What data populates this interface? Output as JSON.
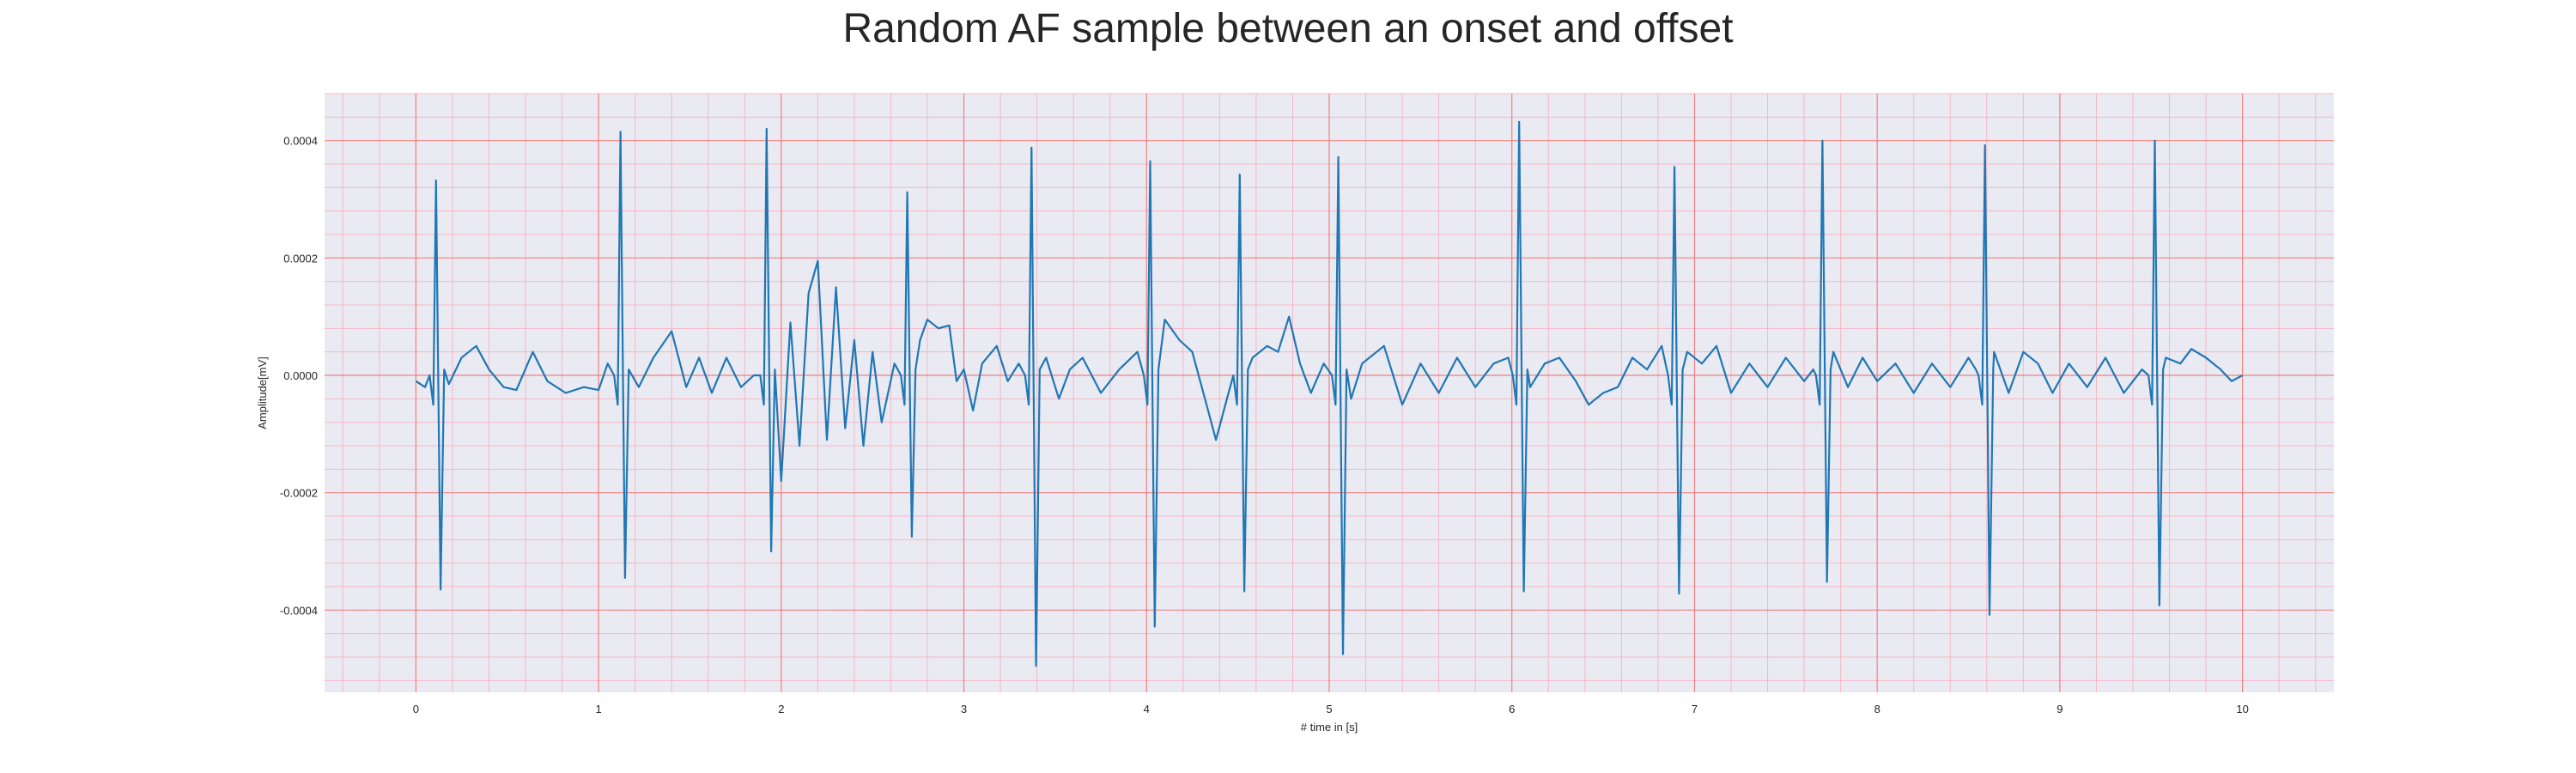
{
  "chart_data": {
    "type": "line",
    "title": "Random AF sample between an onset and offset",
    "xlabel": "# time in [s]",
    "ylabel": "Amplitude[mV]",
    "xlim": [
      -0.5,
      10.5
    ],
    "ylim": [
      -0.00054,
      0.00048
    ],
    "x_ticks": [
      "0",
      "1",
      "2",
      "3",
      "4",
      "5",
      "6",
      "7",
      "8",
      "9",
      "10"
    ],
    "y_ticks": [
      "0.0004",
      "0.0002",
      "0.0000",
      "-0.0002",
      "-0.0004"
    ],
    "grid": true,
    "minor_grid": true,
    "colors": {
      "background": "#eaeaf2",
      "major_grid": "#f08080",
      "minor_grid": "#f5b8c4",
      "line": "#1f77b4"
    },
    "series": [
      {
        "r_peaks": [
          {
            "t": 0.11,
            "peak": 0.000332,
            "trough": -0.000365
          },
          {
            "t": 1.12,
            "peak": 0.000415,
            "trough": -0.000345
          },
          {
            "t": 1.92,
            "peak": 0.00042,
            "trough": -0.0003
          },
          {
            "t": 2.69,
            "peak": 0.000312,
            "trough": -0.000275
          },
          {
            "t": 3.37,
            "peak": 0.000388,
            "trough": -0.000495
          },
          {
            "t": 4.02,
            "peak": 0.000365,
            "trough": -0.000428
          },
          {
            "t": 4.51,
            "peak": 0.000342,
            "trough": -0.000368
          },
          {
            "t": 5.05,
            "peak": 0.000372,
            "trough": -0.000475
          },
          {
            "t": 6.04,
            "peak": 0.000432,
            "trough": -0.000368
          },
          {
            "t": 6.89,
            "peak": 0.000355,
            "trough": -0.000372
          },
          {
            "t": 7.7,
            "peak": 0.0004,
            "trough": -0.000352
          },
          {
            "t": 8.59,
            "peak": 0.000392,
            "trough": -0.000408
          },
          {
            "t": 9.52,
            "peak": 0.0004,
            "trough": -0.000392
          }
        ],
        "baseline_points": [
          [
            0.0,
            -1e-05
          ],
          [
            0.05,
            -2e-05
          ],
          [
            0.18,
            -1.5e-05
          ],
          [
            0.25,
            3e-05
          ],
          [
            0.33,
            5e-05
          ],
          [
            0.4,
            1e-05
          ],
          [
            0.48,
            -2e-05
          ],
          [
            0.55,
            -2.5e-05
          ],
          [
            0.64,
            4e-05
          ],
          [
            0.72,
            -1e-05
          ],
          [
            0.82,
            -3e-05
          ],
          [
            0.92,
            -2e-05
          ],
          [
            1.0,
            -2.5e-05
          ],
          [
            1.05,
            2e-05
          ],
          [
            1.22,
            -2e-05
          ],
          [
            1.3,
            3e-05
          ],
          [
            1.4,
            7.5e-05
          ],
          [
            1.48,
            -2e-05
          ],
          [
            1.55,
            3e-05
          ],
          [
            1.62,
            -3e-05
          ],
          [
            1.7,
            3e-05
          ],
          [
            1.78,
            -2e-05
          ],
          [
            1.85,
            0.0
          ],
          [
            2.0,
            -0.00018
          ],
          [
            2.05,
            9e-05
          ],
          [
            2.1,
            -0.00012
          ],
          [
            2.15,
            0.00014
          ],
          [
            2.2,
            0.000195
          ],
          [
            2.25,
            -0.00011
          ],
          [
            2.3,
            0.00015
          ],
          [
            2.35,
            -9e-05
          ],
          [
            2.4,
            6e-05
          ],
          [
            2.45,
            -0.00012
          ],
          [
            2.5,
            4e-05
          ],
          [
            2.55,
            -8e-05
          ],
          [
            2.62,
            2e-05
          ],
          [
            2.76,
            6e-05
          ],
          [
            2.8,
            9.5e-05
          ],
          [
            2.86,
            8e-05
          ],
          [
            2.92,
            8.5e-05
          ],
          [
            2.96,
            -1e-05
          ],
          [
            3.0,
            1e-05
          ],
          [
            3.05,
            -6e-05
          ],
          [
            3.1,
            2e-05
          ],
          [
            3.18,
            5e-05
          ],
          [
            3.24,
            -1e-05
          ],
          [
            3.3,
            2e-05
          ],
          [
            3.45,
            3e-05
          ],
          [
            3.52,
            -4e-05
          ],
          [
            3.58,
            1e-05
          ],
          [
            3.65,
            3e-05
          ],
          [
            3.75,
            -3e-05
          ],
          [
            3.85,
            1e-05
          ],
          [
            3.95,
            4e-05
          ],
          [
            4.1,
            9.5e-05
          ],
          [
            4.18,
            6e-05
          ],
          [
            4.25,
            4e-05
          ],
          [
            4.32,
            -4e-05
          ],
          [
            4.38,
            -0.00011
          ],
          [
            4.44,
            -4e-05
          ],
          [
            4.58,
            3e-05
          ],
          [
            4.66,
            5e-05
          ],
          [
            4.72,
            4e-05
          ],
          [
            4.78,
            0.0001
          ],
          [
            4.84,
            2e-05
          ],
          [
            4.9,
            -3e-05
          ],
          [
            4.97,
            2e-05
          ],
          [
            5.12,
            -4e-05
          ],
          [
            5.18,
            2e-05
          ],
          [
            5.3,
            5e-05
          ],
          [
            5.4,
            -5e-05
          ],
          [
            5.5,
            2e-05
          ],
          [
            5.6,
            -3e-05
          ],
          [
            5.7,
            3e-05
          ],
          [
            5.8,
            -2e-05
          ],
          [
            5.9,
            2e-05
          ],
          [
            5.98,
            3e-05
          ],
          [
            6.1,
            -2e-05
          ],
          [
            6.18,
            2e-05
          ],
          [
            6.26,
            3e-05
          ],
          [
            6.35,
            -1e-05
          ],
          [
            6.42,
            -5e-05
          ],
          [
            6.5,
            -3e-05
          ],
          [
            6.58,
            -2e-05
          ],
          [
            6.66,
            3e-05
          ],
          [
            6.74,
            1e-05
          ],
          [
            6.82,
            5e-05
          ],
          [
            6.96,
            4e-05
          ],
          [
            7.04,
            2e-05
          ],
          [
            7.12,
            5e-05
          ],
          [
            7.2,
            -3e-05
          ],
          [
            7.3,
            2e-05
          ],
          [
            7.4,
            -2e-05
          ],
          [
            7.5,
            3e-05
          ],
          [
            7.6,
            -1e-05
          ],
          [
            7.65,
            1e-05
          ],
          [
            7.76,
            4e-05
          ],
          [
            7.84,
            -2e-05
          ],
          [
            7.92,
            3e-05
          ],
          [
            8.0,
            -1e-05
          ],
          [
            8.1,
            2e-05
          ],
          [
            8.2,
            -3e-05
          ],
          [
            8.3,
            2e-05
          ],
          [
            8.4,
            -2e-05
          ],
          [
            8.5,
            3e-05
          ],
          [
            8.54,
            1e-05
          ],
          [
            8.64,
            4e-05
          ],
          [
            8.72,
            -3e-05
          ],
          [
            8.8,
            4e-05
          ],
          [
            8.88,
            2e-05
          ],
          [
            8.96,
            -3e-05
          ],
          [
            9.05,
            2e-05
          ],
          [
            9.15,
            -2e-05
          ],
          [
            9.25,
            3e-05
          ],
          [
            9.35,
            -3e-05
          ],
          [
            9.45,
            1e-05
          ],
          [
            9.58,
            3e-05
          ],
          [
            9.66,
            2e-05
          ],
          [
            9.72,
            4.5e-05
          ],
          [
            9.8,
            3e-05
          ],
          [
            9.88,
            1e-05
          ],
          [
            9.94,
            -1e-05
          ],
          [
            10.0,
            0.0
          ]
        ]
      }
    ]
  }
}
